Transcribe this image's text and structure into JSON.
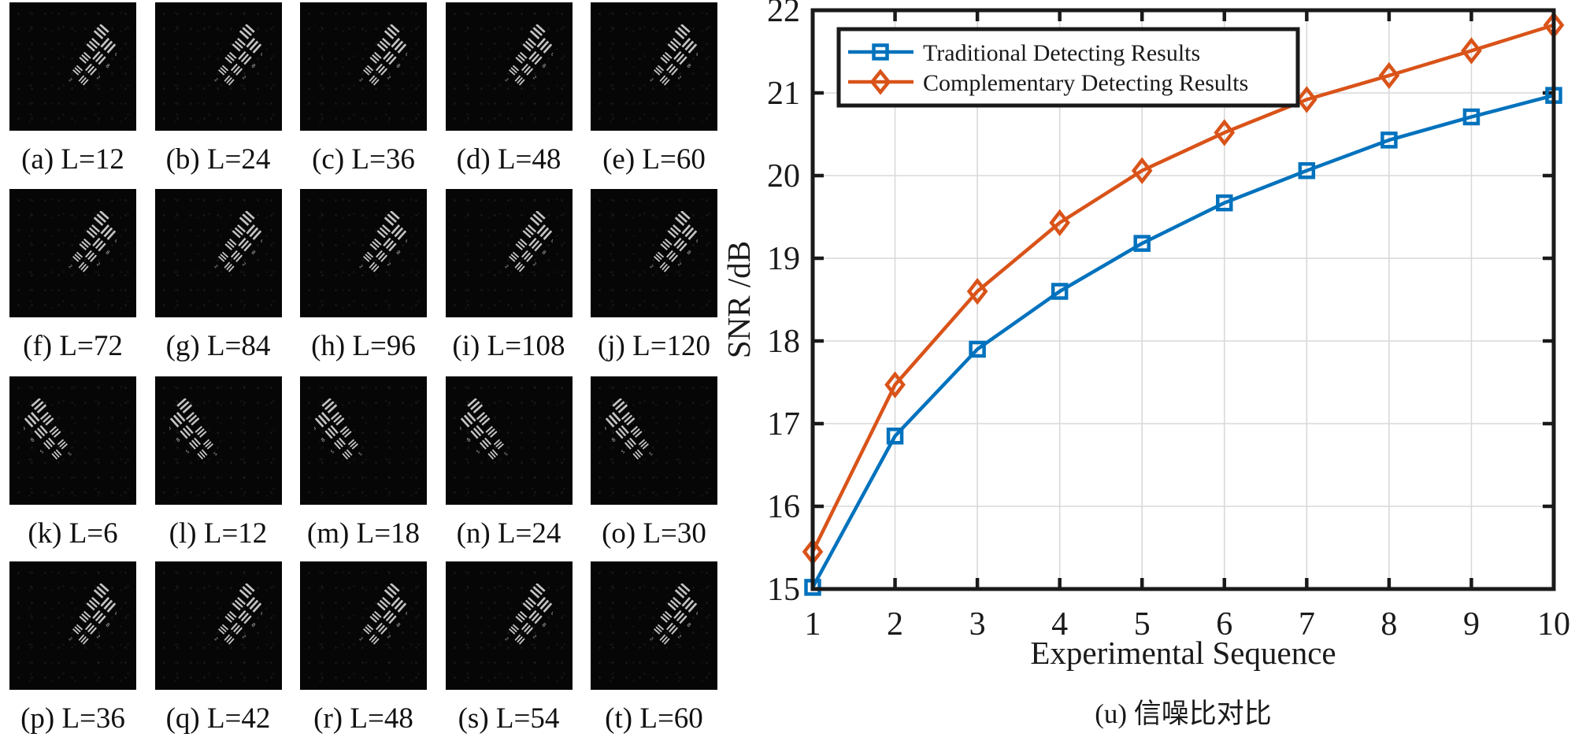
{
  "figure": {
    "background": "#ffffff",
    "tile_background": "#060606",
    "pattern_color": "#c4c4c4"
  },
  "tiles": {
    "pattern_icon": "usaf-resolution-target-icon",
    "rows": [
      {
        "labels": [
          "(a) L=12",
          "(b) L=24",
          "(c) L=36",
          "(d) L=48",
          "(e) L=60"
        ]
      },
      {
        "labels": [
          "(f) L=72",
          "(g) L=84",
          "(h) L=96",
          "(i) L=108",
          "(j) L=120"
        ]
      },
      {
        "labels": [
          "(k) L=6",
          "(l) L=12",
          "(m) L=18",
          "(n) L=24",
          "(o) L=30"
        ]
      },
      {
        "labels": [
          "(p) L=36",
          "(q) L=42",
          "(r) L=48",
          "(s) L=54",
          "(t) L=60"
        ]
      }
    ]
  },
  "chart_data": {
    "type": "line",
    "title": "",
    "xlabel": "Experimental Sequence",
    "ylabel": "SNR /dB",
    "caption": "(u) 信噪比对比",
    "xlim": [
      1,
      10
    ],
    "ylim": [
      15,
      22
    ],
    "xticks": [
      1,
      2,
      3,
      4,
      5,
      6,
      7,
      8,
      9,
      10
    ],
    "yticks": [
      15,
      16,
      17,
      18,
      19,
      20,
      21,
      22
    ],
    "grid": true,
    "legend_position": "top-left",
    "x": [
      1,
      2,
      3,
      4,
      5,
      6,
      7,
      8,
      9,
      10
    ],
    "series": [
      {
        "name": "Traditional Detecting Results",
        "color": "#0072BD",
        "marker": "square",
        "values": [
          15.02,
          16.85,
          17.9,
          18.6,
          19.18,
          19.67,
          20.06,
          20.43,
          20.71,
          20.97
        ]
      },
      {
        "name": "Complementary Detecting Results",
        "color": "#D95319",
        "marker": "diamond",
        "values": [
          15.45,
          17.47,
          18.6,
          19.43,
          20.06,
          20.52,
          20.92,
          21.21,
          21.51,
          21.82
        ]
      }
    ]
  }
}
